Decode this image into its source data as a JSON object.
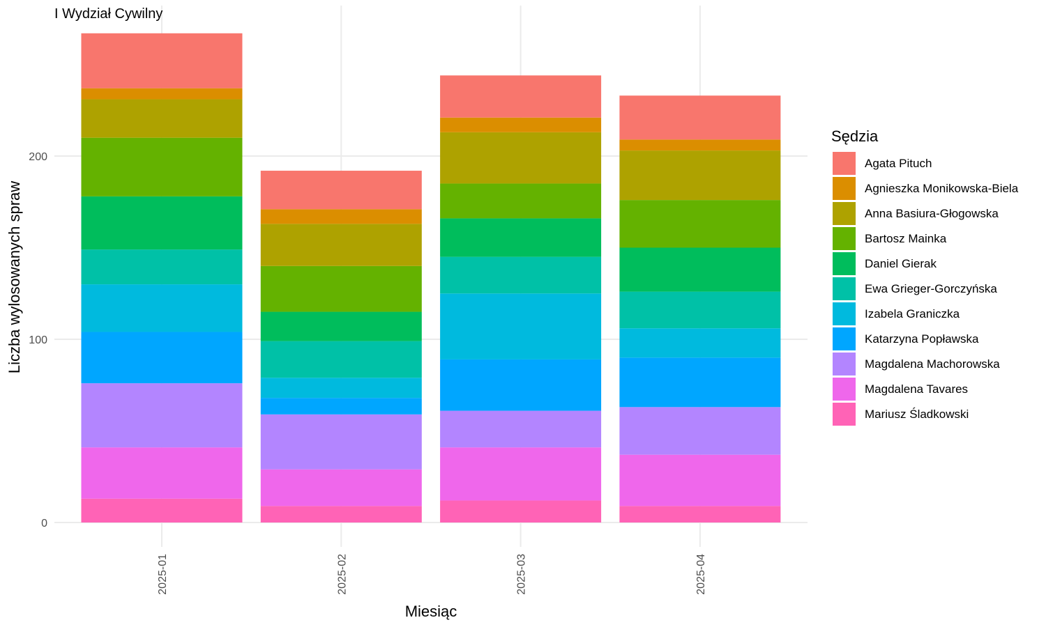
{
  "chart_data": {
    "type": "bar",
    "stacked": true,
    "title": "I Wydział Cywilny",
    "xlabel": "Miesiąc",
    "ylabel": "Liczba wylosowanych spraw",
    "ylim": [
      0,
      280
    ],
    "yticks": [
      0,
      100,
      200
    ],
    "ytick_labels": [
      "0",
      "100",
      "200"
    ],
    "grid": true,
    "legend_title": "Sędzia",
    "legend_position": "right",
    "categories": [
      "2025-01",
      "2025-02",
      "2025-03",
      "2025-04"
    ],
    "series": [
      {
        "name": "Agata Pituch",
        "color": "#F8766D",
        "values": [
          30,
          21,
          23,
          24
        ]
      },
      {
        "name": "Agnieszka Monikowska-Biela",
        "color": "#DB8E00",
        "values": [
          6,
          8,
          8,
          6
        ]
      },
      {
        "name": "Anna Basiura-Głogowska",
        "color": "#AEA200",
        "values": [
          21,
          23,
          28,
          27
        ]
      },
      {
        "name": "Bartosz Mainka",
        "color": "#64B200",
        "values": [
          32,
          25,
          19,
          26
        ]
      },
      {
        "name": "Daniel Gierak",
        "color": "#00BD5C",
        "values": [
          29,
          16,
          21,
          24
        ]
      },
      {
        "name": "Ewa Grieger-Gorczyńska",
        "color": "#00C1A7",
        "values": [
          19,
          20,
          20,
          20
        ]
      },
      {
        "name": "Izabela Graniczka",
        "color": "#00BADE",
        "values": [
          26,
          11,
          36,
          16
        ]
      },
      {
        "name": "Katarzyna Popławska",
        "color": "#00A6FF",
        "values": [
          28,
          9,
          28,
          27
        ]
      },
      {
        "name": "Magdalena Machorowska",
        "color": "#B385FF",
        "values": [
          35,
          30,
          20,
          26
        ]
      },
      {
        "name": "Magdalena Tavares",
        "color": "#EF67EB",
        "values": [
          28,
          20,
          29,
          28
        ]
      },
      {
        "name": "Mariusz Śladkowski",
        "color": "#FF63B6",
        "values": [
          13,
          9,
          12,
          9
        ]
      }
    ]
  }
}
